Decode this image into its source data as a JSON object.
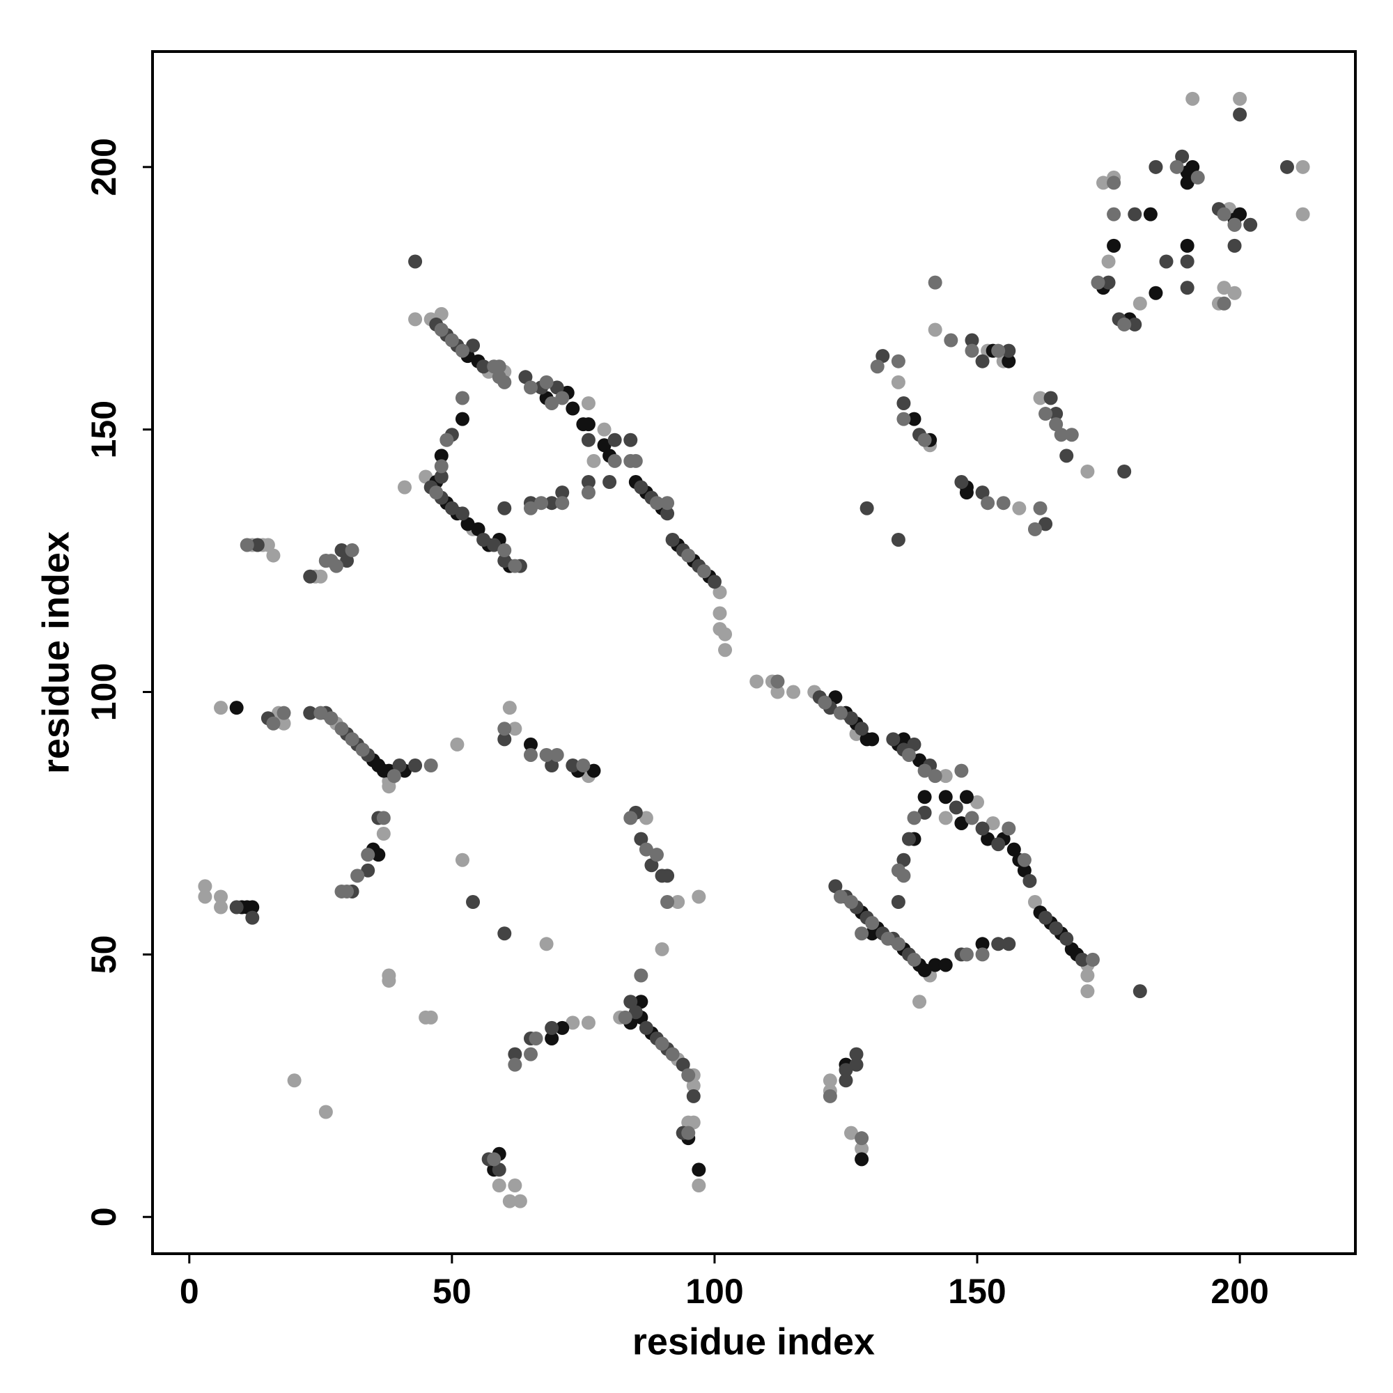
{
  "chart_data": {
    "type": "scatter",
    "xlabel": "residue index",
    "ylabel": "residue index",
    "xlim": [
      -7,
      222
    ],
    "ylim": [
      -7,
      222
    ],
    "xticks": [
      0,
      50,
      100,
      150,
      200
    ],
    "yticks": [
      0,
      50,
      100,
      150,
      200
    ],
    "series": [
      {
        "color": "#a0a0a0",
        "x": [
          3,
          3,
          6,
          6,
          6,
          17,
          18,
          28,
          38,
          38,
          37,
          51,
          52,
          61,
          62,
          68,
          76,
          38,
          38,
          45,
          46,
          20,
          26,
          87,
          93,
          97,
          90,
          59,
          61,
          63,
          62,
          73,
          76,
          82,
          93,
          96,
          96,
          95,
          96,
          97,
          122,
          122,
          126,
          128,
          108,
          111,
          112,
          115,
          119,
          127,
          144,
          144,
          150,
          153,
          161,
          171,
          171,
          171,
          139,
          141,
          43,
          46,
          48,
          57,
          60,
          76,
          77,
          79,
          41,
          45,
          54,
          101,
          101,
          101,
          102,
          102,
          12,
          14,
          15,
          16,
          24,
          25,
          142,
          152,
          155,
          135,
          141,
          158,
          171,
          175,
          176,
          174,
          184,
          191,
          196,
          197,
          199,
          198,
          200,
          212,
          212,
          181,
          162
        ],
        "y": [
          63,
          61,
          61,
          59,
          97,
          96,
          94,
          94,
          83,
          82,
          73,
          90,
          68,
          97,
          93,
          52,
          84,
          46,
          45,
          38,
          38,
          26,
          20,
          76,
          60,
          61,
          51,
          6,
          3,
          3,
          6,
          37,
          37,
          38,
          30,
          27,
          25,
          18,
          18,
          6,
          26,
          24,
          16,
          13,
          102,
          102,
          100,
          100,
          100,
          92,
          84,
          76,
          79,
          75,
          60,
          48,
          46,
          43,
          41,
          46,
          171,
          171,
          172,
          161,
          161,
          155,
          144,
          150,
          139,
          141,
          131,
          119,
          115,
          112,
          111,
          108,
          128,
          128,
          128,
          126,
          122,
          122,
          169,
          165,
          163,
          159,
          147,
          135,
          142,
          182,
          198,
          197,
          200,
          213,
          174,
          177,
          176,
          192,
          213,
          200,
          191,
          174,
          156
        ]
      },
      {
        "color": "#111111",
        "x": [
          10,
          11,
          12,
          9,
          35,
          36,
          37,
          38,
          41,
          35,
          36,
          65,
          74,
          77,
          59,
          58,
          69,
          71,
          84,
          86,
          86,
          88,
          95,
          97,
          125,
          128,
          123,
          125,
          127,
          129,
          130,
          135,
          136,
          139,
          140,
          138,
          144,
          147,
          148,
          152,
          155,
          157,
          158,
          159,
          162,
          164,
          166,
          168,
          169,
          130,
          128,
          131,
          136,
          139,
          140,
          142,
          144,
          151,
          53,
          55,
          52,
          48,
          68,
          72,
          73,
          75,
          76,
          79,
          80,
          47,
          49,
          51,
          53,
          55,
          57,
          59,
          61,
          85,
          87,
          90,
          93,
          96,
          99,
          141,
          138,
          148,
          148,
          153,
          156,
          174,
          176,
          179,
          183,
          190,
          191,
          190,
          190,
          199,
          200,
          184
        ],
        "y": [
          59,
          59,
          59,
          97,
          87,
          86,
          85,
          85,
          85,
          70,
          69,
          90,
          85,
          85,
          12,
          9,
          34,
          36,
          37,
          38,
          41,
          35,
          15,
          9,
          29,
          11,
          99,
          96,
          94,
          91,
          91,
          90,
          91,
          87,
          80,
          72,
          80,
          75,
          80,
          72,
          72,
          70,
          68,
          66,
          58,
          56,
          54,
          51,
          50,
          54,
          58,
          55,
          51,
          48,
          47,
          48,
          48,
          52,
          164,
          163,
          152,
          145,
          156,
          157,
          154,
          151,
          151,
          147,
          145,
          140,
          136,
          134,
          132,
          131,
          128,
          129,
          124,
          140,
          138,
          135,
          128,
          125,
          122,
          148,
          152,
          139,
          138,
          165,
          163,
          177,
          185,
          171,
          191,
          199,
          200,
          197,
          185,
          190,
          191,
          176
        ]
      },
      {
        "color": "#444444",
        "x": [
          9,
          12,
          15,
          23,
          26,
          30,
          32,
          34,
          40,
          36,
          34,
          31,
          43,
          54,
          60,
          69,
          73,
          60,
          85,
          86,
          88,
          90,
          91,
          57,
          59,
          62,
          65,
          69,
          84,
          85,
          87,
          89,
          91,
          94,
          96,
          94,
          125,
          125,
          127,
          127,
          120,
          122,
          126,
          128,
          134,
          136,
          138,
          141,
          140,
          146,
          151,
          154,
          160,
          163,
          165,
          167,
          170,
          181,
          137,
          136,
          135,
          123,
          125,
          127,
          129,
          132,
          134,
          137,
          147,
          154,
          156,
          43,
          47,
          49,
          51,
          54,
          56,
          50,
          48,
          64,
          67,
          70,
          76,
          80,
          81,
          46,
          48,
          50,
          52,
          56,
          58,
          60,
          63,
          60,
          65,
          69,
          71,
          76,
          84,
          86,
          88,
          91,
          92,
          94,
          97,
          100,
          13,
          23,
          26,
          29,
          30,
          149,
          151,
          156,
          132,
          136,
          139,
          147,
          151,
          163,
          129,
          135,
          164,
          165,
          167,
          178,
          175,
          177,
          180,
          184,
          189,
          186,
          190,
          190,
          196,
          199,
          202,
          199,
          200,
          209,
          180
        ],
        "y": [
          59,
          57,
          95,
          96,
          96,
          92,
          90,
          88,
          86,
          76,
          66,
          62,
          86,
          60,
          91,
          86,
          86,
          54,
          77,
          72,
          67,
          65,
          65,
          11,
          9,
          31,
          34,
          36,
          41,
          39,
          36,
          34,
          32,
          29,
          23,
          16,
          26,
          28,
          31,
          29,
          99,
          97,
          95,
          93,
          91,
          89,
          90,
          86,
          77,
          78,
          74,
          71,
          64,
          57,
          55,
          53,
          49,
          43,
          72,
          68,
          60,
          63,
          61,
          59,
          57,
          54,
          53,
          50,
          50,
          52,
          52,
          182,
          170,
          168,
          166,
          166,
          162,
          149,
          141,
          160,
          158,
          158,
          148,
          140,
          148,
          139,
          137,
          135,
          134,
          129,
          128,
          125,
          124,
          135,
          136,
          136,
          138,
          140,
          148,
          139,
          137,
          134,
          129,
          127,
          124,
          121,
          128,
          122,
          125,
          127,
          125,
          167,
          163,
          165,
          164,
          155,
          149,
          140,
          138,
          132,
          135,
          129,
          156,
          153,
          145,
          142,
          178,
          171,
          170,
          200,
          202,
          182,
          182,
          177,
          192,
          189,
          189,
          185,
          210,
          200,
          191
        ]
      },
      {
        "color": "#707070",
        "x": [
          18,
          16,
          25,
          27,
          29,
          31,
          33,
          39,
          37,
          34,
          32,
          30,
          29,
          46,
          60,
          65,
          68,
          70,
          75,
          84,
          87,
          89,
          91,
          58,
          62,
          65,
          66,
          83,
          86,
          90,
          92,
          95,
          95,
          122,
          128,
          112,
          121,
          124,
          137,
          140,
          142,
          147,
          149,
          156,
          159,
          172,
          138,
          136,
          135,
          124,
          126,
          130,
          133,
          135,
          138,
          148,
          151,
          128,
          48,
          50,
          52,
          58,
          59,
          60,
          52,
          49,
          48,
          59,
          65,
          69,
          71,
          81,
          47,
          60,
          62,
          65,
          67,
          71,
          76,
          68,
          84,
          85,
          89,
          91,
          95,
          98,
          11,
          26,
          27,
          28,
          31,
          142,
          145,
          149,
          154,
          131,
          135,
          136,
          140,
          152,
          155,
          161,
          162,
          163,
          165,
          166,
          168,
          173,
          176,
          178,
          176,
          188,
          192,
          197,
          197,
          199
        ],
        "y": [
          96,
          94,
          96,
          95,
          93,
          91,
          89,
          84,
          76,
          69,
          65,
          62,
          62,
          86,
          93,
          88,
          88,
          88,
          86,
          76,
          70,
          69,
          60,
          11,
          29,
          31,
          34,
          38,
          46,
          33,
          31,
          27,
          16,
          23,
          15,
          102,
          98,
          96,
          88,
          85,
          84,
          85,
          76,
          74,
          68,
          49,
          76,
          65,
          66,
          61,
          60,
          56,
          53,
          52,
          49,
          50,
          50,
          54,
          169,
          167,
          165,
          162,
          160,
          159,
          156,
          148,
          143,
          162,
          158,
          155,
          156,
          144,
          138,
          127,
          124,
          135,
          136,
          136,
          138,
          159,
          144,
          144,
          136,
          136,
          126,
          123,
          128,
          125,
          125,
          124,
          127,
          178,
          167,
          165,
          165,
          162,
          163,
          152,
          148,
          136,
          136,
          131,
          135,
          153,
          151,
          149,
          149,
          178,
          191,
          170,
          197,
          200,
          198,
          174,
          191,
          189
        ]
      }
    ]
  }
}
